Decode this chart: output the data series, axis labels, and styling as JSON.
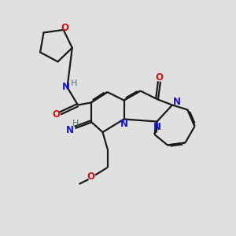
{
  "bg_color": "#e0e0e0",
  "bond_color": "#1a1a1a",
  "N_color": "#1414cc",
  "O_color": "#cc1414",
  "H_color": "#4a7a7a",
  "font_size": 8.5,
  "line_width": 1.6,
  "xlim": [
    0,
    10
  ],
  "ylim": [
    0,
    10
  ]
}
